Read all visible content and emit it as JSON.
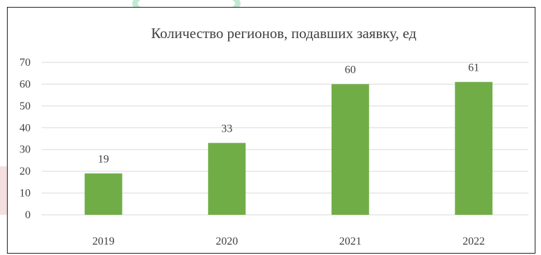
{
  "chart_data": {
    "type": "bar",
    "title": "Количество регионов, подавших заявку, ед",
    "categories": [
      "2019",
      "2020",
      "2021",
      "2022"
    ],
    "values": [
      19,
      33,
      60,
      61
    ],
    "ylim": [
      0,
      70
    ],
    "yticks": [
      0,
      10,
      20,
      30,
      40,
      50,
      60,
      70
    ],
    "xlabel": "",
    "ylabel": "",
    "grid": true,
    "data_labels": true,
    "legend": "none",
    "bar_color": "#70ad47"
  }
}
